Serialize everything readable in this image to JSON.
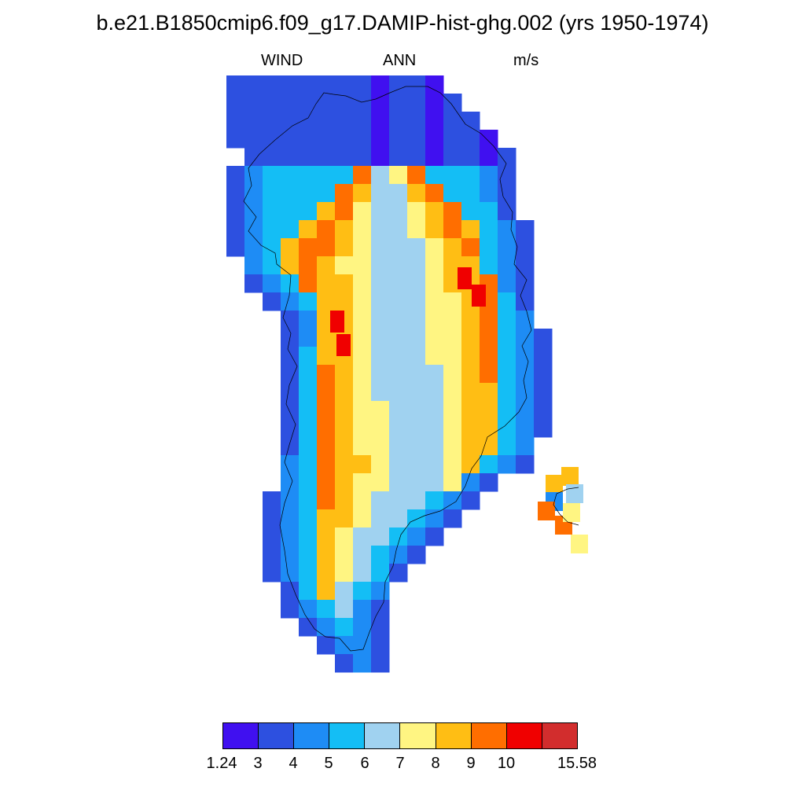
{
  "title": "b.e21.B1850cmip6.f09_g17.DAMIP-hist-ghg.002 (yrs 1950-1974)",
  "variable": "WIND",
  "season": "ANN",
  "units": "m/s",
  "colorbar": {
    "colors": [
      "#4010f0",
      "#2d50e0",
      "#1e8cf5",
      "#14bef5",
      "#a0d2f0",
      "#fff582",
      "#ffbe14",
      "#ff6e00",
      "#f00000",
      "#d22d2d"
    ],
    "labels": [
      "1.24",
      "3",
      "4",
      "5",
      "6",
      "7",
      "8",
      "9",
      "10",
      "15.58"
    ]
  }
}
